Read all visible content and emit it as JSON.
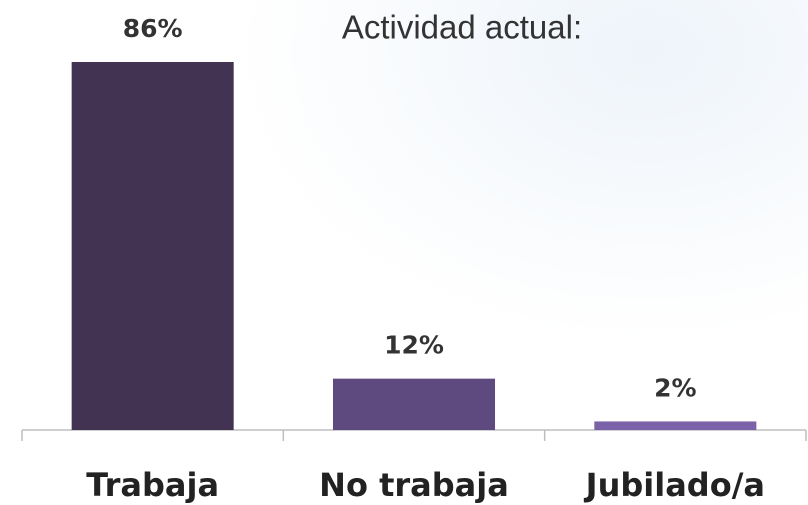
{
  "chart_data": {
    "type": "bar",
    "title": "Actividad actual:",
    "categories": [
      "Trabaja",
      "No trabaja",
      "Jubilado/a"
    ],
    "values": [
      86,
      12,
      2
    ],
    "value_labels": [
      "86%",
      "12%",
      "2%"
    ],
    "colors": [
      "#433352",
      "#5e4a7e",
      "#7b62a8"
    ]
  }
}
